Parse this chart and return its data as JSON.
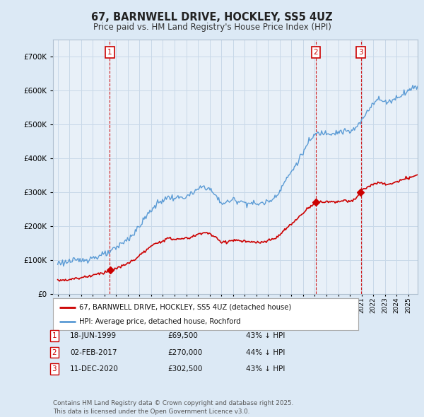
{
  "title": "67, BARNWELL DRIVE, HOCKLEY, SS5 4UZ",
  "subtitle": "Price paid vs. HM Land Registry's House Price Index (HPI)",
  "legend_line1": "67, BARNWELL DRIVE, HOCKLEY, SS5 4UZ (detached house)",
  "legend_line2": "HPI: Average price, detached house, Rochford",
  "footer": "Contains HM Land Registry data © Crown copyright and database right 2025.\nThis data is licensed under the Open Government Licence v3.0.",
  "transactions": [
    {
      "num": 1,
      "date": "18-JUN-1999",
      "price": 69500,
      "label": "43% ↓ HPI",
      "date_val": 1999.46
    },
    {
      "num": 2,
      "date": "02-FEB-2017",
      "price": 270000,
      "label": "44% ↓ HPI",
      "date_val": 2017.09
    },
    {
      "num": 3,
      "date": "11-DEC-2020",
      "price": 302500,
      "label": "43% ↓ HPI",
      "date_val": 2020.94
    }
  ],
  "hpi_color": "#5b9bd5",
  "price_color": "#cc0000",
  "vline_color": "#cc0000",
  "bg_color": "#dce9f5",
  "plot_bg": "#e8f0f8",
  "grid_color": "#c8d8e8",
  "ylim": [
    0,
    750000
  ],
  "yticks": [
    0,
    100000,
    200000,
    300000,
    400000,
    500000,
    600000,
    700000
  ],
  "xlim_start": 1994.6,
  "xlim_end": 2025.8
}
